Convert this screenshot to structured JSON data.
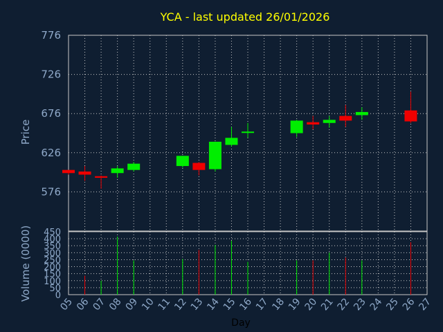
{
  "chart_data": {
    "type": "candlestick",
    "title": "YCA - last updated 26/01/2026",
    "xlabel": "Day",
    "price_axis": {
      "label": "Price",
      "ylim": [
        526,
        776
      ],
      "ticks": [
        "776",
        "726",
        "676",
        "626",
        "576"
      ]
    },
    "volume_axis": {
      "label": "Volume (0000)",
      "ylim": [
        0,
        450
      ],
      "ticks": [
        "450",
        "400",
        "350",
        "300",
        "250",
        "200",
        "150",
        "100",
        "50",
        "0"
      ]
    },
    "x_ticks": [
      "05",
      "06",
      "07",
      "08",
      "09",
      "10",
      "11",
      "12",
      "13",
      "14",
      "15",
      "16",
      "17",
      "18",
      "19",
      "20",
      "21",
      "22",
      "23",
      "24",
      "25",
      "26",
      "27"
    ],
    "grid": true,
    "colors": {
      "up": "#00ee00",
      "down": "#ee0000",
      "title": "#ffff00",
      "axis": "#8fa9c9",
      "grid": "#c8c8c8"
    },
    "candles": [
      {
        "day": "05",
        "open": 604,
        "high": 604,
        "low": 598,
        "close": 600
      },
      {
        "day": "06",
        "open": 602,
        "high": 609,
        "low": 590,
        "close": 598
      },
      {
        "day": "07",
        "open": 596,
        "high": 597,
        "low": 580,
        "close": 594
      },
      {
        "day": "08",
        "open": 600,
        "high": 609,
        "low": 594,
        "close": 606
      },
      {
        "day": "09",
        "open": 604,
        "high": 614,
        "low": 602,
        "close": 612
      },
      {
        "day": "12",
        "open": 609,
        "high": 622,
        "low": 607,
        "close": 622
      },
      {
        "day": "13",
        "open": 613,
        "high": 614,
        "low": 597,
        "close": 604
      },
      {
        "day": "14",
        "open": 605,
        "high": 640,
        "low": 602,
        "close": 640
      },
      {
        "day": "15",
        "open": 636,
        "high": 659,
        "low": 634,
        "close": 645
      },
      {
        "day": "16",
        "open": 652,
        "high": 664,
        "low": 645,
        "close": 653
      },
      {
        "day": "19",
        "open": 651,
        "high": 668,
        "low": 646,
        "close": 667
      },
      {
        "day": "20",
        "open": 665,
        "high": 673,
        "low": 656,
        "close": 662
      },
      {
        "day": "21",
        "open": 664,
        "high": 673,
        "low": 658,
        "close": 668
      },
      {
        "day": "22",
        "open": 673,
        "high": 687,
        "low": 659,
        "close": 667
      },
      {
        "day": "23",
        "open": 674,
        "high": 684,
        "low": 668,
        "close": 678
      },
      {
        "day": "26",
        "open": 680,
        "high": 704,
        "low": 664,
        "close": 666
      }
    ],
    "volume": [
      {
        "day": "06",
        "value": 135,
        "dir": "down"
      },
      {
        "day": "07",
        "value": 100,
        "dir": "up"
      },
      {
        "day": "08",
        "value": 415,
        "dir": "up"
      },
      {
        "day": "09",
        "value": 245,
        "dir": "up"
      },
      {
        "day": "12",
        "value": 255,
        "dir": "up"
      },
      {
        "day": "13",
        "value": 320,
        "dir": "down"
      },
      {
        "day": "14",
        "value": 355,
        "dir": "up"
      },
      {
        "day": "15",
        "value": 385,
        "dir": "up"
      },
      {
        "day": "16",
        "value": 235,
        "dir": "up"
      },
      {
        "day": "19",
        "value": 245,
        "dir": "up"
      },
      {
        "day": "20",
        "value": 245,
        "dir": "down"
      },
      {
        "day": "21",
        "value": 300,
        "dir": "up"
      },
      {
        "day": "22",
        "value": 265,
        "dir": "down"
      },
      {
        "day": "23",
        "value": 245,
        "dir": "up"
      },
      {
        "day": "26",
        "value": 375,
        "dir": "down"
      }
    ]
  }
}
